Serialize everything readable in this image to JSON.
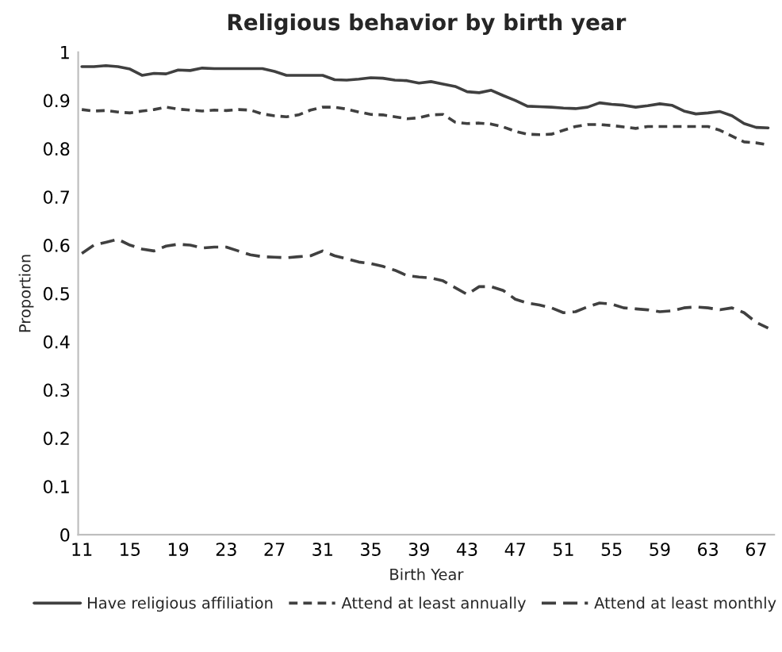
{
  "chart_data": {
    "type": "line",
    "title": "Religious behavior by birth year",
    "xlabel": "Birth Year",
    "ylabel": "Proportion",
    "categories": [
      "11",
      null,
      null,
      null,
      "15",
      null,
      null,
      null,
      "19",
      null,
      null,
      null,
      "23",
      null,
      null,
      null,
      "27",
      null,
      null,
      null,
      "31",
      null,
      null,
      null,
      "35",
      null,
      null,
      null,
      "39",
      null,
      null,
      null,
      "43",
      null,
      null,
      null,
      "47",
      null,
      null,
      null,
      "51",
      null,
      null,
      null,
      "55",
      null,
      null,
      null,
      "59",
      null,
      null,
      null,
      "63",
      null,
      null,
      null,
      "67",
      null
    ],
    "series": [
      {
        "name": "Have religious affiliation",
        "color": "#404040",
        "line_style": "solid",
        "values": [
          0.97,
          0.97,
          0.972,
          0.97,
          0.965,
          0.952,
          0.956,
          0.955,
          0.963,
          0.962,
          0.967,
          0.966,
          0.966,
          0.966,
          0.966,
          0.966,
          0.96,
          0.952,
          0.952,
          0.952,
          0.952,
          0.943,
          0.942,
          0.944,
          0.947,
          0.946,
          0.942,
          0.941,
          0.936,
          0.939,
          0.934,
          0.929,
          0.918,
          0.916,
          0.921,
          0.91,
          0.9,
          0.888,
          0.887,
          0.886,
          0.884,
          0.883,
          0.886,
          0.895,
          0.892,
          0.89,
          0.886,
          0.889,
          0.893,
          0.89,
          0.878,
          0.872,
          0.874,
          0.877,
          0.868,
          0.852,
          0.844,
          0.843
        ]
      },
      {
        "name": "Attend at least annually",
        "color": "#404040",
        "line_style": "dotted",
        "values": [
          0.881,
          0.878,
          0.879,
          0.876,
          0.874,
          0.878,
          0.881,
          0.886,
          0.882,
          0.88,
          0.878,
          0.88,
          0.879,
          0.881,
          0.88,
          0.872,
          0.868,
          0.866,
          0.87,
          0.88,
          0.886,
          0.886,
          0.882,
          0.876,
          0.871,
          0.87,
          0.866,
          0.862,
          0.864,
          0.87,
          0.871,
          0.855,
          0.852,
          0.853,
          0.851,
          0.845,
          0.836,
          0.83,
          0.829,
          0.83,
          0.838,
          0.846,
          0.85,
          0.85,
          0.848,
          0.845,
          0.842,
          0.846,
          0.846,
          0.846,
          0.846,
          0.846,
          0.846,
          0.838,
          0.826,
          0.814,
          0.812,
          0.808
        ]
      },
      {
        "name": "Attend at least monthly",
        "color": "#404040",
        "line_style": "dashed",
        "values": [
          0.583,
          0.6,
          0.606,
          0.612,
          0.6,
          0.592,
          0.588,
          0.598,
          0.602,
          0.6,
          0.594,
          0.596,
          0.596,
          0.588,
          0.58,
          0.576,
          0.575,
          0.574,
          0.576,
          0.578,
          0.588,
          0.578,
          0.572,
          0.565,
          0.562,
          0.556,
          0.548,
          0.537,
          0.534,
          0.532,
          0.526,
          0.512,
          0.498,
          0.514,
          0.514,
          0.506,
          0.488,
          0.48,
          0.476,
          0.47,
          0.46,
          0.462,
          0.472,
          0.48,
          0.478,
          0.47,
          0.468,
          0.466,
          0.462,
          0.464,
          0.47,
          0.472,
          0.47,
          0.466,
          0.47,
          0.46,
          0.44,
          0.428
        ]
      }
    ],
    "ylim": [
      0,
      1
    ],
    "yticks": [
      0,
      0.1,
      0.2,
      0.3,
      0.4,
      0.5,
      0.6,
      0.7,
      0.8,
      0.9,
      1
    ],
    "grid": false,
    "legend": "bottom"
  }
}
